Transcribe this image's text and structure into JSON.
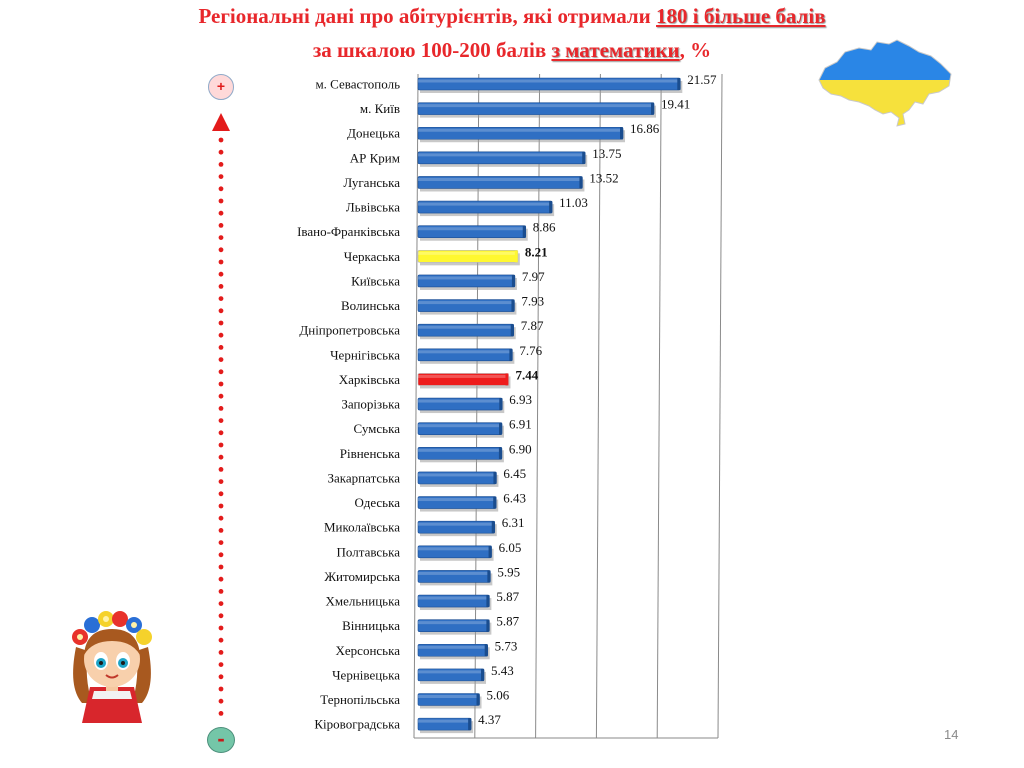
{
  "title": {
    "line1_prefix": "Регіональні дані про абітурієнтів, які отримали ",
    "line1_highlight": "180 і більше балів",
    "line2_prefix": "за шкалою 100-200 балів ",
    "line2_highlight": "з математики",
    "line2_suffix": ", %"
  },
  "scale": {
    "plus_label": "+",
    "minus_label": "-"
  },
  "page_number": "14",
  "colors": {
    "title": "#e8272b",
    "bar_default": "#2f6fc3",
    "bar_highlight_yellow": "#fff830",
    "bar_highlight_red": "#ee1c1c",
    "scale_dots": "#e31b1b"
  },
  "chart_data": {
    "type": "bar",
    "orientation": "horizontal",
    "categories": [
      "м. Севастополь",
      "м. Київ",
      "Донецька",
      "АР Крим",
      "Луганська",
      "Львівська",
      "Івано-Франківська",
      "Черкаська",
      "Київська",
      "Волинська",
      "Дніпропетровська",
      "Чернігівська",
      "Харківська",
      "Запорізька",
      "Сумська",
      "Рівненська",
      "Закарпатська",
      "Одеська",
      "Миколаївська",
      "Полтавська",
      "Житомирська",
      "Хмельницька",
      "Вінницька",
      "Херсонська",
      "Чернівецька",
      "Тернопільська",
      "Кіровоградська"
    ],
    "values": [
      21.57,
      19.41,
      16.86,
      13.75,
      13.52,
      11.03,
      8.86,
      8.21,
      7.97,
      7.93,
      7.87,
      7.76,
      7.44,
      6.93,
      6.91,
      6.9,
      6.45,
      6.43,
      6.31,
      6.05,
      5.95,
      5.87,
      5.87,
      5.73,
      5.43,
      5.06,
      4.37
    ],
    "value_labels": [
      "21.57",
      "19.41",
      "16.86",
      "13.75",
      "13.52",
      "11.03",
      "8.86",
      "8.21",
      "7.97",
      "7.93",
      "7.87",
      "7.76",
      "7.44",
      "6.93",
      "6.91",
      "6.90",
      "6.45",
      "6.43",
      "6.31",
      "6.05",
      "5.95",
      "5.87",
      "5.87",
      "5.73",
      "5.43",
      "5.06",
      "4.37"
    ],
    "highlights": [
      {
        "category": "Черкаська",
        "color": "#fff830"
      },
      {
        "category": "Харківська",
        "color": "#ee1c1c"
      }
    ],
    "xlim": [
      0,
      25
    ],
    "grid": true
  }
}
